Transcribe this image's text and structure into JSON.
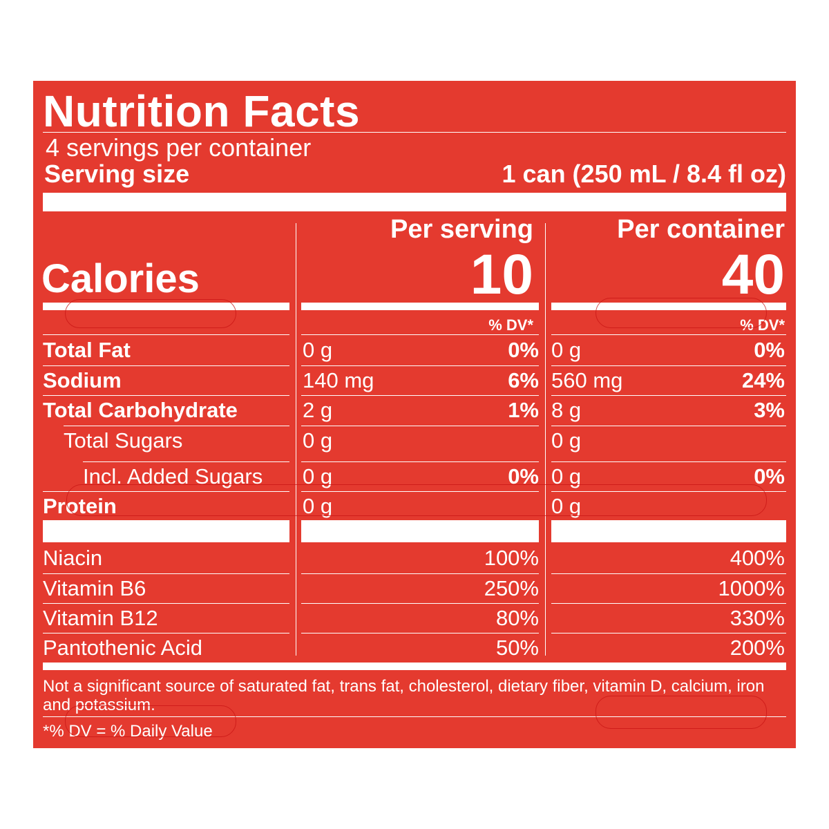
{
  "title": "Nutrition Facts",
  "servings_per_container": "4 servings per container",
  "serving_size_label": "Serving size",
  "serving_size_value": "1 can (250 mL / 8.4 fl oz)",
  "col_serving_header": "Per serving",
  "col_container_header": "Per container",
  "calories_label": "Calories",
  "calories_serving": "10",
  "calories_container": "40",
  "dv_header": "% DV*",
  "nutrients": [
    {
      "label": "Total Fat",
      "serving_amt": "0 g",
      "serving_dv": "0%",
      "container_amt": "0 g",
      "container_dv": "0%"
    },
    {
      "label": "Sodium",
      "serving_amt": "140 mg",
      "serving_dv": "6%",
      "container_amt": "560 mg",
      "container_dv": "24%"
    },
    {
      "label": "Total Carbohydrate",
      "serving_amt": "2 g",
      "serving_dv": "1%",
      "container_amt": "8 g",
      "container_dv": "3%"
    },
    {
      "label": "Total Sugars",
      "serving_amt": "0 g",
      "serving_dv": "",
      "container_amt": "0 g",
      "container_dv": ""
    },
    {
      "label": "Incl. Added Sugars",
      "serving_amt": "0 g",
      "serving_dv": "0%",
      "container_amt": "0 g",
      "container_dv": "0%"
    },
    {
      "label": "Protein",
      "serving_amt": "0 g",
      "serving_dv": "",
      "container_amt": "0 g",
      "container_dv": ""
    }
  ],
  "vitamins": [
    {
      "label": "Niacin",
      "serving_dv": "100%",
      "container_dv": "400%"
    },
    {
      "label": "Vitamin B6",
      "serving_dv": "250%",
      "container_dv": "1000%"
    },
    {
      "label": "Vitamin B12",
      "serving_dv": "80%",
      "container_dv": "330%"
    },
    {
      "label": "Pantothenic Acid",
      "serving_dv": "50%",
      "container_dv": "200%"
    }
  ],
  "footnote": "Not a significant source of saturated fat, trans fat, cholesterol, dietary fiber, vitamin D, calcium, iron and potassium.",
  "dv_note": "*% DV = % Daily Value",
  "colors": {
    "panel": "#e43a2f",
    "text": "#ffffff"
  }
}
